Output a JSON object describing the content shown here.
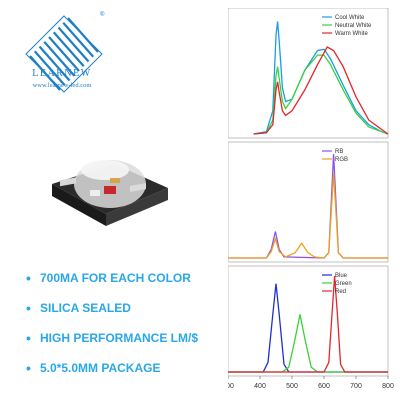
{
  "brand": {
    "name": "LEARNEW",
    "url": "www.learnew-led.com",
    "registered": "®",
    "logo_color": "#1e7fc6",
    "accent_color": "#2aa7e8"
  },
  "features": [
    "700MA FOR EACH COLOR",
    "SILICA SEALED",
    "HIGH PERFORMANCE LM/$",
    "5.0*5.0MM PACKAGE"
  ],
  "chart_data": [
    {
      "type": "line",
      "xlim": [
        300,
        800
      ],
      "series": [
        {
          "name": "Cool White",
          "color": "#1e9be8",
          "points": [
            [
              380,
              0
            ],
            [
              420,
              0.02
            ],
            [
              440,
              0.2
            ],
            [
              450,
              0.85
            ],
            [
              455,
              0.97
            ],
            [
              460,
              0.8
            ],
            [
              470,
              0.4
            ],
            [
              480,
              0.28
            ],
            [
              500,
              0.3
            ],
            [
              540,
              0.55
            ],
            [
              580,
              0.72
            ],
            [
              600,
              0.73
            ],
            [
              620,
              0.65
            ],
            [
              660,
              0.42
            ],
            [
              700,
              0.2
            ],
            [
              740,
              0.08
            ],
            [
              780,
              0.02
            ],
            [
              800,
              0
            ]
          ]
        },
        {
          "name": "Neutral White",
          "color": "#3ad23a",
          "points": [
            [
              380,
              0
            ],
            [
              420,
              0.01
            ],
            [
              440,
              0.12
            ],
            [
              450,
              0.5
            ],
            [
              455,
              0.58
            ],
            [
              460,
              0.48
            ],
            [
              470,
              0.28
            ],
            [
              480,
              0.22
            ],
            [
              500,
              0.3
            ],
            [
              540,
              0.55
            ],
            [
              580,
              0.68
            ],
            [
              600,
              0.68
            ],
            [
              620,
              0.6
            ],
            [
              660,
              0.38
            ],
            [
              700,
              0.18
            ],
            [
              740,
              0.06
            ],
            [
              780,
              0.02
            ],
            [
              800,
              0
            ]
          ]
        },
        {
          "name": "Warm White",
          "color": "#e3262b",
          "points": [
            [
              380,
              0
            ],
            [
              420,
              0.01
            ],
            [
              440,
              0.08
            ],
            [
              450,
              0.38
            ],
            [
              455,
              0.45
            ],
            [
              460,
              0.36
            ],
            [
              470,
              0.2
            ],
            [
              480,
              0.16
            ],
            [
              500,
              0.2
            ],
            [
              540,
              0.38
            ],
            [
              580,
              0.6
            ],
            [
              610,
              0.75
            ],
            [
              630,
              0.72
            ],
            [
              660,
              0.58
            ],
            [
              700,
              0.32
            ],
            [
              740,
              0.12
            ],
            [
              780,
              0.04
            ],
            [
              800,
              0
            ]
          ]
        }
      ]
    },
    {
      "type": "line",
      "xlim": [
        300,
        800
      ],
      "series": [
        {
          "name": "RB",
          "color": "#8a52e8",
          "points": [
            [
              300,
              0
            ],
            [
              420,
              0
            ],
            [
              435,
              0.08
            ],
            [
              448,
              0.25
            ],
            [
              460,
              0.08
            ],
            [
              475,
              0.01
            ],
            [
              600,
              0
            ],
            [
              615,
              0.05
            ],
            [
              630,
              0.98
            ],
            [
              645,
              0.05
            ],
            [
              660,
              0
            ],
            [
              800,
              0
            ]
          ]
        },
        {
          "name": "RGB",
          "color": "#f0a020",
          "points": [
            [
              300,
              0
            ],
            [
              420,
              0
            ],
            [
              435,
              0.06
            ],
            [
              448,
              0.18
            ],
            [
              460,
              0.06
            ],
            [
              480,
              0.01
            ],
            [
              510,
              0.05
            ],
            [
              530,
              0.14
            ],
            [
              550,
              0.05
            ],
            [
              570,
              0.01
            ],
            [
              600,
              0
            ],
            [
              615,
              0.05
            ],
            [
              630,
              0.8
            ],
            [
              645,
              0.05
            ],
            [
              660,
              0
            ],
            [
              800,
              0
            ]
          ]
        }
      ]
    },
    {
      "type": "line",
      "xlim": [
        300,
        800
      ],
      "xticks": [
        300,
        400,
        500,
        600,
        700,
        800
      ],
      "series": [
        {
          "name": "Blue",
          "color": "#2030d0",
          "points": [
            [
              300,
              0
            ],
            [
              410,
              0
            ],
            [
              425,
              0.1
            ],
            [
              440,
              0.6
            ],
            [
              450,
              0.92
            ],
            [
              460,
              0.6
            ],
            [
              475,
              0.08
            ],
            [
              490,
              0
            ],
            [
              800,
              0
            ]
          ]
        },
        {
          "name": "Green",
          "color": "#3ad23a",
          "points": [
            [
              300,
              0
            ],
            [
              470,
              0
            ],
            [
              490,
              0.05
            ],
            [
              510,
              0.35
            ],
            [
              525,
              0.6
            ],
            [
              540,
              0.35
            ],
            [
              560,
              0.05
            ],
            [
              580,
              0
            ],
            [
              800,
              0
            ]
          ]
        },
        {
          "name": "Red",
          "color": "#e3262b",
          "points": [
            [
              300,
              0
            ],
            [
              600,
              0
            ],
            [
              615,
              0.1
            ],
            [
              625,
              0.6
            ],
            [
              633,
              1.0
            ],
            [
              642,
              0.6
            ],
            [
              652,
              0.08
            ],
            [
              665,
              0
            ],
            [
              800,
              0
            ]
          ]
        }
      ]
    }
  ]
}
